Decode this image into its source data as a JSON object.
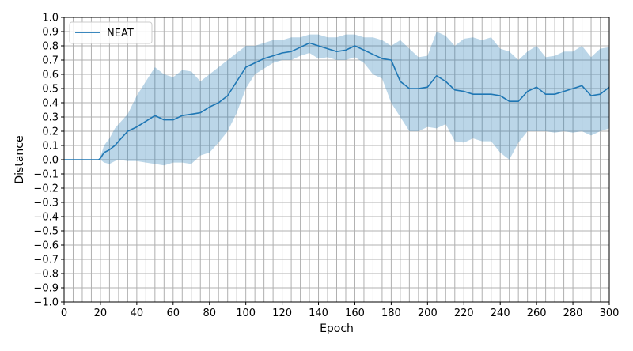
{
  "chart_data": {
    "type": "line",
    "xlabel": "Epoch",
    "ylabel": "Distance",
    "xlim": [
      0,
      300
    ],
    "ylim": [
      -1.0,
      1.0
    ],
    "x_ticks": [
      0,
      20,
      40,
      60,
      80,
      100,
      120,
      140,
      160,
      180,
      200,
      220,
      240,
      260,
      280,
      300
    ],
    "y_ticks": [
      -1.0,
      -0.9,
      -0.8,
      -0.7,
      -0.6,
      -0.5,
      -0.4,
      -0.3,
      -0.2,
      -0.1,
      0.0,
      0.1,
      0.2,
      0.3,
      0.4,
      0.5,
      0.6,
      0.7,
      0.8,
      0.9,
      1.0
    ],
    "grid": true,
    "legend": "top-left",
    "colors": {
      "line": "#1f77b4",
      "band": "#1f77b4"
    },
    "series": [
      {
        "name": "NEAT",
        "x": [
          0,
          10,
          19,
          20,
          22,
          25,
          28,
          30,
          35,
          40,
          45,
          50,
          55,
          60,
          65,
          70,
          75,
          80,
          85,
          90,
          95,
          100,
          105,
          110,
          115,
          120,
          125,
          130,
          135,
          140,
          145,
          150,
          155,
          160,
          165,
          170,
          175,
          180,
          185,
          190,
          195,
          200,
          205,
          210,
          215,
          220,
          225,
          230,
          235,
          240,
          245,
          250,
          255,
          260,
          265,
          270,
          275,
          280,
          285,
          290,
          295,
          300
        ],
        "mean": [
          0.0,
          0.0,
          0.0,
          0.01,
          0.05,
          0.07,
          0.1,
          0.13,
          0.2,
          0.23,
          0.27,
          0.31,
          0.28,
          0.28,
          0.31,
          0.32,
          0.33,
          0.37,
          0.4,
          0.45,
          0.55,
          0.65,
          0.68,
          0.71,
          0.73,
          0.75,
          0.76,
          0.79,
          0.82,
          0.8,
          0.78,
          0.76,
          0.77,
          0.8,
          0.77,
          0.74,
          0.71,
          0.7,
          0.55,
          0.5,
          0.5,
          0.51,
          0.59,
          0.55,
          0.49,
          0.48,
          0.46,
          0.46,
          0.46,
          0.45,
          0.41,
          0.41,
          0.48,
          0.51,
          0.46,
          0.46,
          0.48,
          0.5,
          0.52,
          0.45,
          0.46,
          0.51
        ],
        "lower": [
          0.0,
          0.0,
          0.0,
          0.0,
          -0.02,
          -0.03,
          -0.01,
          0.0,
          -0.01,
          -0.01,
          -0.02,
          -0.03,
          -0.04,
          -0.02,
          -0.02,
          -0.03,
          0.03,
          0.05,
          0.12,
          0.2,
          0.33,
          0.5,
          0.6,
          0.64,
          0.68,
          0.7,
          0.7,
          0.73,
          0.75,
          0.71,
          0.72,
          0.7,
          0.7,
          0.72,
          0.68,
          0.6,
          0.57,
          0.4,
          0.3,
          0.2,
          0.2,
          0.23,
          0.22,
          0.25,
          0.13,
          0.12,
          0.15,
          0.13,
          0.13,
          0.05,
          0.0,
          0.12,
          0.2,
          0.2,
          0.2,
          0.19,
          0.2,
          0.19,
          0.2,
          0.17,
          0.2,
          0.22
        ],
        "upper": [
          0.0,
          0.0,
          0.0,
          0.02,
          0.1,
          0.15,
          0.22,
          0.25,
          0.32,
          0.45,
          0.55,
          0.65,
          0.6,
          0.58,
          0.63,
          0.62,
          0.55,
          0.6,
          0.65,
          0.7,
          0.75,
          0.8,
          0.8,
          0.82,
          0.84,
          0.84,
          0.86,
          0.86,
          0.88,
          0.88,
          0.86,
          0.86,
          0.88,
          0.88,
          0.86,
          0.86,
          0.84,
          0.8,
          0.84,
          0.78,
          0.72,
          0.73,
          0.9,
          0.87,
          0.8,
          0.85,
          0.86,
          0.84,
          0.86,
          0.78,
          0.76,
          0.7,
          0.76,
          0.8,
          0.72,
          0.73,
          0.76,
          0.76,
          0.8,
          0.72,
          0.78,
          0.79
        ]
      }
    ]
  }
}
